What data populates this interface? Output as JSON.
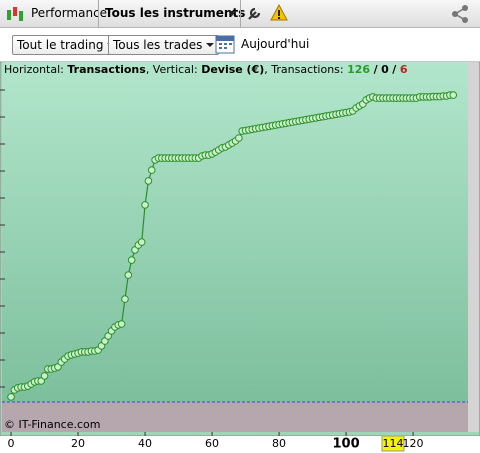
{
  "toolbar": {
    "tabs": [
      "Performance",
      "Tous les instruments"
    ]
  },
  "filters": {
    "trading": "Tout le trading",
    "trades": "Tous les trades",
    "date": "Aujourd'hui"
  },
  "chart_data": {
    "type": "line",
    "info": {
      "h_prefix": "Horizontal:",
      "h": "Transactions",
      "v_prefix": ", Vertical:",
      "v": "Devise (€)",
      "t_prefix": ", Transactions:",
      "wins": 126,
      "sep": "/",
      "even": 0,
      "losses": 6
    },
    "credit": "© IT-Finance.com",
    "x": [
      0,
      1,
      2,
      3,
      4,
      5,
      6,
      7,
      8,
      9,
      10,
      11,
      12,
      13,
      14,
      15,
      16,
      17,
      18,
      19,
      20,
      21,
      22,
      23,
      24,
      25,
      26,
      27,
      28,
      29,
      30,
      31,
      32,
      33,
      34,
      35,
      36,
      37,
      38,
      39,
      40,
      41,
      42,
      43,
      44,
      45,
      46,
      47,
      48,
      49,
      50,
      51,
      52,
      53,
      54,
      55,
      56,
      57,
      58,
      59,
      60,
      61,
      62,
      63,
      64,
      65,
      66,
      67,
      68,
      69,
      70,
      71,
      72,
      73,
      74,
      75,
      76,
      77,
      78,
      79,
      80,
      81,
      82,
      83,
      84,
      85,
      86,
      87,
      88,
      89,
      90,
      91,
      92,
      93,
      94,
      95,
      96,
      97,
      98,
      99,
      100,
      101,
      102,
      103,
      104,
      105,
      106,
      107,
      108,
      109,
      110,
      111,
      112,
      113,
      114,
      115,
      116,
      117,
      118,
      119,
      120,
      121,
      122,
      123,
      124,
      125,
      126,
      127,
      128,
      129,
      130,
      131,
      132
    ],
    "series": [
      {
        "color": "#2a8f2a",
        "values": [
          1.7,
          4,
          4.7,
          5,
          5,
          5.3,
          6,
          6.7,
          7,
          7,
          8.7,
          11,
          11,
          11.3,
          11.7,
          13.3,
          14.3,
          15.3,
          15.7,
          16,
          16.3,
          16.7,
          16.7,
          16.7,
          17,
          17,
          17.3,
          18.7,
          20.3,
          22,
          23.7,
          25,
          25.7,
          26,
          34.3,
          42.3,
          47.3,
          50.7,
          52.3,
          53.3,
          65.7,
          73.7,
          77.3,
          80.7,
          81.3,
          81.3,
          81.3,
          81.3,
          81.3,
          81.3,
          81.3,
          81.3,
          81.3,
          81.3,
          81.3,
          81.3,
          81.3,
          82,
          82.3,
          82.3,
          82.7,
          83.3,
          84,
          84.7,
          85,
          85.7,
          86.3,
          87,
          88,
          90.3,
          90.5,
          90.7,
          90.9,
          91.1,
          91.3,
          91.5,
          91.7,
          91.9,
          92.1,
          92.3,
          92.5,
          92.7,
          92.9,
          93.1,
          93.3,
          93.5,
          93.7,
          93.9,
          94.1,
          94.3,
          94.5,
          94.7,
          94.9,
          95.1,
          95.3,
          95.5,
          95.7,
          95.9,
          96.1,
          96.3,
          96.5,
          96.7,
          97,
          98,
          98.7,
          99.3,
          100.7,
          101.3,
          101.7,
          101.3,
          101.3,
          101.3,
          101.3,
          101.3,
          101.3,
          101.3,
          101.3,
          101.3,
          101.3,
          101.3,
          101.3,
          101.3,
          101.7,
          101.7,
          101.7,
          101.7,
          101.8,
          101.8,
          101.8,
          102,
          102,
          102.3,
          102.3
        ]
      }
    ],
    "xlim": [
      -2.7,
      136.4
    ],
    "ylim": [
      -10,
      108
    ],
    "xticks": [
      0,
      20,
      40,
      60,
      80,
      100,
      120
    ],
    "bold_x": 100,
    "highlight_x": 114,
    "yticks": [
      5,
      14,
      23,
      32,
      41,
      50,
      59,
      68,
      77,
      86,
      95,
      104
    ],
    "zero_line": 0
  }
}
